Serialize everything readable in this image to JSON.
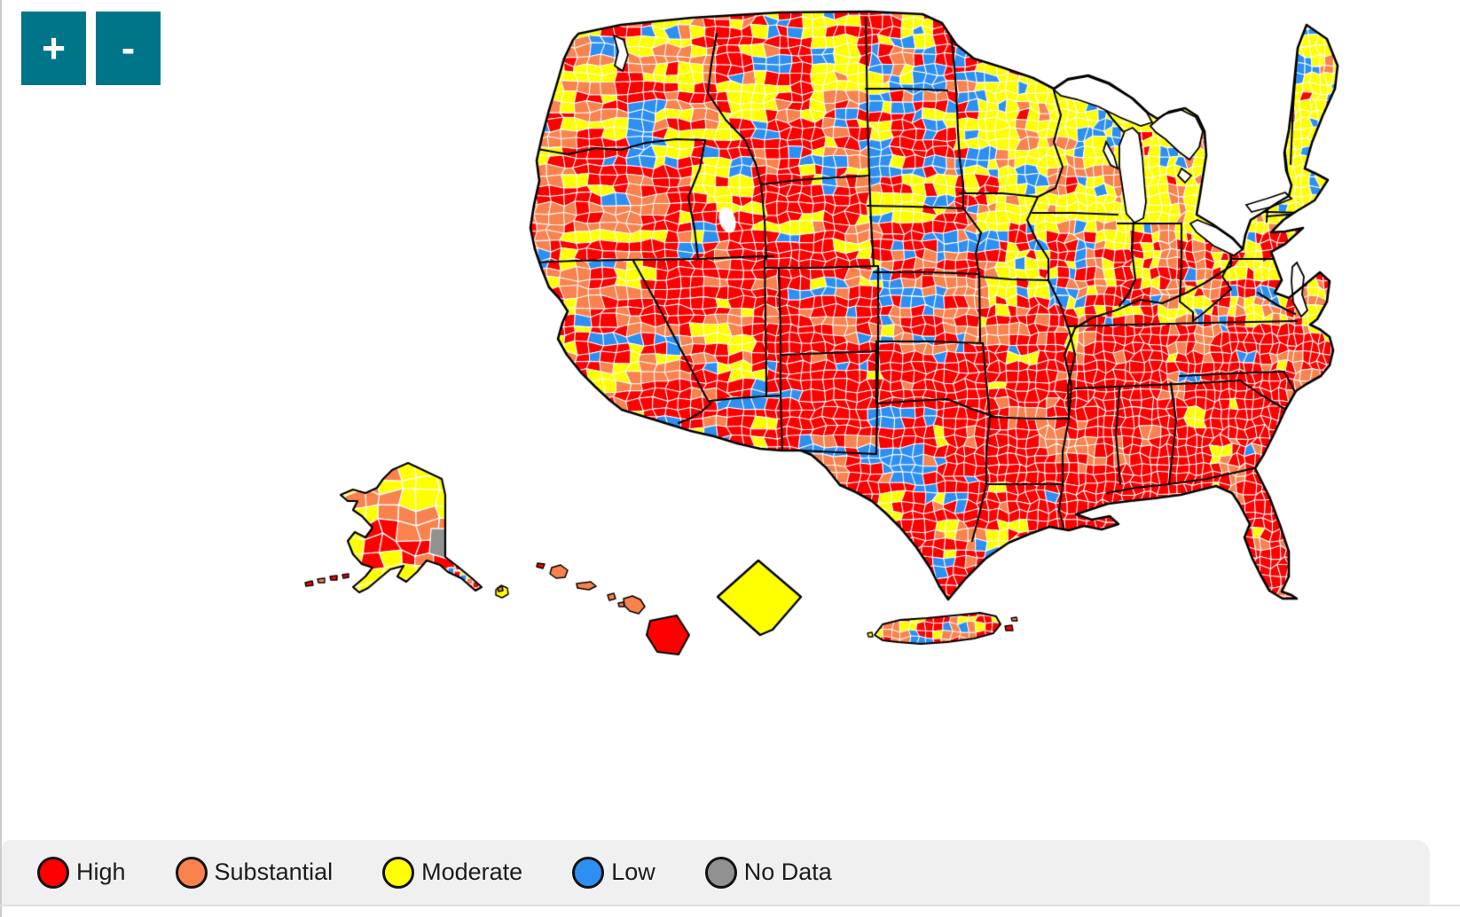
{
  "zoom_controls": {
    "zoom_in_label": "+",
    "zoom_out_label": "-"
  },
  "legend": {
    "items": [
      {
        "id": "high",
        "label": "High",
        "color": "#FE0000"
      },
      {
        "id": "substantial",
        "label": "Substantial",
        "color": "#F9824E"
      },
      {
        "id": "moderate",
        "label": "Moderate",
        "color": "#FFFF00"
      },
      {
        "id": "low",
        "label": "Low",
        "color": "#2D8FF2"
      },
      {
        "id": "no_data",
        "label": "No Data",
        "color": "#919191"
      }
    ]
  },
  "map": {
    "kind": "choropleth",
    "subject": "US county-level community transmission map",
    "levels": {
      "high": "#FE0000",
      "substantial": "#F9824E",
      "moderate": "#FFFF00",
      "low": "#2D8FF2",
      "no_data": "#919191"
    },
    "county_border_color": "#FFFFFF",
    "state_border_color": "#000000",
    "water_color": "#FFFFFF",
    "control_color": "#00758A",
    "areas": [
      "contiguous-united-states",
      "alaska",
      "hawaii",
      "district-of-columbia",
      "puerto-rico"
    ],
    "seed": 7,
    "conus_regions": [
      {
        "name": "pacific-northwest",
        "u": [
          0.0,
          0.23
        ],
        "v": [
          0.0,
          0.24
        ],
        "weights": {
          "high": 0.4,
          "substantial": 0.28,
          "moderate": 0.26,
          "low": 0.06
        }
      },
      {
        "name": "california",
        "u": [
          0.0,
          0.14
        ],
        "v": [
          0.24,
          0.76
        ],
        "weights": {
          "high": 0.38,
          "substantial": 0.34,
          "moderate": 0.22,
          "low": 0.06
        }
      },
      {
        "name": "northern-rockies",
        "u": [
          0.14,
          0.42
        ],
        "v": [
          0.0,
          0.3
        ],
        "weights": {
          "high": 0.4,
          "substantial": 0.18,
          "moderate": 0.24,
          "low": 0.18
        }
      },
      {
        "name": "great-basin-southwest",
        "u": [
          0.14,
          0.4
        ],
        "v": [
          0.3,
          0.82
        ],
        "weights": {
          "high": 0.7,
          "substantial": 0.15,
          "moderate": 0.09,
          "low": 0.06
        }
      },
      {
        "name": "northern-plains",
        "u": [
          0.42,
          0.55
        ],
        "v": [
          0.0,
          0.33
        ],
        "weights": {
          "low": 0.38,
          "high": 0.26,
          "moderate": 0.26,
          "substantial": 0.1
        }
      },
      {
        "name": "central-plains",
        "u": [
          0.4,
          0.56
        ],
        "v": [
          0.33,
          0.56
        ],
        "weights": {
          "high": 0.44,
          "low": 0.24,
          "moderate": 0.18,
          "substantial": 0.14
        }
      },
      {
        "name": "texas-south-plains",
        "u": [
          0.3,
          0.6
        ],
        "v": [
          0.56,
          1.0
        ],
        "weights": {
          "high": 0.78,
          "substantial": 0.09,
          "moderate": 0.06,
          "low": 0.07
        }
      },
      {
        "name": "upper-midwest",
        "u": [
          0.55,
          0.77
        ],
        "v": [
          0.0,
          0.355
        ],
        "weights": {
          "moderate": 0.64,
          "substantial": 0.16,
          "low": 0.11,
          "high": 0.09
        }
      },
      {
        "name": "iowa-missouri",
        "u": [
          0.52,
          0.645
        ],
        "v": [
          0.3,
          0.475
        ],
        "weights": {
          "high": 0.38,
          "moderate": 0.29,
          "low": 0.18,
          "substantial": 0.15
        }
      },
      {
        "name": "ohio-valley",
        "u": [
          0.645,
          0.88
        ],
        "v": [
          0.355,
          0.525
        ],
        "weights": {
          "high": 0.34,
          "moderate": 0.31,
          "substantial": 0.24,
          "low": 0.11
        }
      },
      {
        "name": "deep-south",
        "u": [
          0.56,
          0.95
        ],
        "v": [
          0.525,
          1.0
        ],
        "weights": {
          "high": 0.86,
          "substantial": 0.09,
          "moderate": 0.04,
          "low": 0.01
        }
      },
      {
        "name": "northeast",
        "u": [
          0.77,
          1.0
        ],
        "v": [
          0.0,
          0.355
        ],
        "weights": {
          "moderate": 0.7,
          "low": 0.12,
          "substantial": 0.12,
          "high": 0.06
        }
      },
      {
        "name": "mid-atlantic",
        "u": [
          0.88,
          1.0
        ],
        "v": [
          0.355,
          0.525
        ],
        "weights": {
          "moderate": 0.44,
          "substantial": 0.25,
          "high": 0.23,
          "low": 0.08
        }
      },
      {
        "name": "southeast-coast",
        "u": [
          0.88,
          1.0
        ],
        "v": [
          0.525,
          1.0
        ],
        "weights": {
          "high": 0.8,
          "substantial": 0.12,
          "moderate": 0.05,
          "low": 0.03
        }
      }
    ],
    "default_weights": {
      "high": 0.6,
      "substantial": 0.2,
      "moderate": 0.15,
      "low": 0.05
    },
    "alaska_bands": [
      {
        "v": [
          0.0,
          0.3
        ],
        "weights": {
          "moderate": 0.76,
          "substantial": 0.18,
          "high": 0.06
        }
      },
      {
        "v": [
          0.3,
          0.52
        ],
        "weights": {
          "substantial": 0.44,
          "moderate": 0.32,
          "high": 0.24
        }
      },
      {
        "v": [
          0.52,
          1.0
        ],
        "weights": {
          "high": 0.6,
          "substantial": 0.24,
          "moderate": 0.1,
          "low": 0.06
        }
      }
    ],
    "alaska_no_data_patch": "no_data",
    "hawaii_islands": [
      {
        "name": "niihau",
        "level": "high"
      },
      {
        "name": "kauai",
        "level": "moderate"
      },
      {
        "name": "kauai-speck",
        "level": "substantial"
      },
      {
        "name": "oahu",
        "level": "substantial"
      },
      {
        "name": "molokai",
        "level": "substantial"
      },
      {
        "name": "lanai",
        "level": "substantial"
      },
      {
        "name": "kahoolawe",
        "level": "substantial"
      },
      {
        "name": "maui",
        "level": "substantial"
      },
      {
        "name": "hawaii-island",
        "level": "high"
      }
    ],
    "district_of_columbia_level": "moderate",
    "puerto_rico_weights": {
      "high": 0.45,
      "substantial": 0.3,
      "moderate": 0.17,
      "low": 0.08
    }
  }
}
